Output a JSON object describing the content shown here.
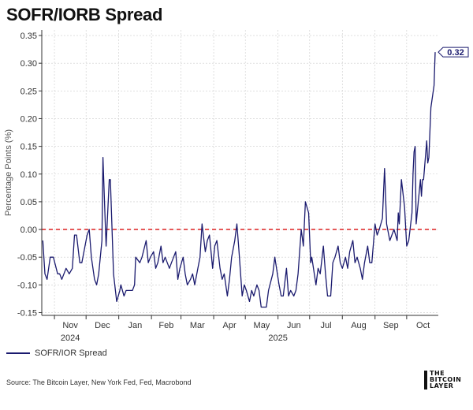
{
  "title": "SOFR/IORB Spread",
  "legend": {
    "label": "SOFR/IOR Spread"
  },
  "source": "Source: The Bitcoin Layer, New York Fed, Fed, Macrobond",
  "logo": {
    "line1": "THE",
    "line2": "BITCOIN",
    "line3": "LAYER"
  },
  "colors": {
    "series": "#1a1a6e",
    "zero_line": "#dd2222",
    "grid": "#cccccc"
  },
  "chart_data": {
    "type": "line",
    "title": "SOFR/IORB Spread",
    "ylabel": "Percentage Points (%)",
    "xlabel": "",
    "ylim": [
      -0.155,
      0.36
    ],
    "yticks": [
      0.35,
      0.3,
      0.25,
      0.2,
      0.15,
      0.1,
      0.05,
      0.0,
      -0.05,
      -0.1,
      -0.15
    ],
    "ytick_labels": [
      "0.35",
      "0.30",
      "0.25",
      "0.20",
      "0.15",
      "0.10",
      "0.05",
      "0.00",
      "-0.05",
      "-0.10",
      "-0.15"
    ],
    "xlim": [
      "2024-10-20",
      "2025-10-31"
    ],
    "month_starts": [
      "2024-11-01",
      "2024-12-01",
      "2025-01-01",
      "2025-02-01",
      "2025-03-01",
      "2025-04-01",
      "2025-05-01",
      "2025-06-01",
      "2025-07-01",
      "2025-08-01",
      "2025-09-01",
      "2025-10-01"
    ],
    "month_labels": [
      "Nov",
      "Dec",
      "Jan",
      "Feb",
      "Mar",
      "Apr",
      "May",
      "Jun",
      "Jul",
      "Aug",
      "Sep",
      "Oct"
    ],
    "year_labels": [
      {
        "label": "2024",
        "date": "2024-11-16"
      },
      {
        "label": "2025",
        "date": "2025-06-01"
      }
    ],
    "reference_line": {
      "y": 0.0,
      "style": "dashed"
    },
    "last_value_label": "0.32",
    "grid": true,
    "series": [
      {
        "name": "SOFR/IOR Spread",
        "points": [
          [
            "2024-10-21",
            -0.02
          ],
          [
            "2024-10-23",
            -0.08
          ],
          [
            "2024-10-25",
            -0.09
          ],
          [
            "2024-10-28",
            -0.05
          ],
          [
            "2024-10-31",
            -0.05
          ],
          [
            "2024-11-04",
            -0.08
          ],
          [
            "2024-11-06",
            -0.08
          ],
          [
            "2024-11-08",
            -0.09
          ],
          [
            "2024-11-12",
            -0.07
          ],
          [
            "2024-11-15",
            -0.08
          ],
          [
            "2024-11-18",
            -0.07
          ],
          [
            "2024-11-20",
            -0.01
          ],
          [
            "2024-11-22",
            -0.01
          ],
          [
            "2024-11-25",
            -0.06
          ],
          [
            "2024-11-27",
            -0.06
          ],
          [
            "2024-12-02",
            -0.01
          ],
          [
            "2024-12-04",
            0.0
          ],
          [
            "2024-12-06",
            -0.05
          ],
          [
            "2024-12-09",
            -0.09
          ],
          [
            "2024-12-11",
            -0.1
          ],
          [
            "2024-12-13",
            -0.08
          ],
          [
            "2024-12-16",
            -0.02
          ],
          [
            "2024-12-17",
            0.13
          ],
          [
            "2024-12-19",
            0.02
          ],
          [
            "2024-12-20",
            -0.03
          ],
          [
            "2024-12-23",
            0.09
          ],
          [
            "2024-12-24",
            0.09
          ],
          [
            "2024-12-26",
            -0.02
          ],
          [
            "2024-12-27",
            -0.08
          ],
          [
            "2024-12-30",
            -0.13
          ],
          [
            "2025-01-02",
            -0.11
          ],
          [
            "2025-01-03",
            -0.1
          ],
          [
            "2025-01-06",
            -0.12
          ],
          [
            "2025-01-08",
            -0.11
          ],
          [
            "2025-01-10",
            -0.11
          ],
          [
            "2025-01-14",
            -0.11
          ],
          [
            "2025-01-16",
            -0.1
          ],
          [
            "2025-01-17",
            -0.05
          ],
          [
            "2025-01-21",
            -0.06
          ],
          [
            "2025-01-23",
            -0.05
          ],
          [
            "2025-01-27",
            -0.02
          ],
          [
            "2025-01-29",
            -0.06
          ],
          [
            "2025-01-31",
            -0.05
          ],
          [
            "2025-02-03",
            -0.04
          ],
          [
            "2025-02-05",
            -0.07
          ],
          [
            "2025-02-07",
            -0.06
          ],
          [
            "2025-02-10",
            -0.03
          ],
          [
            "2025-02-12",
            -0.06
          ],
          [
            "2025-02-14",
            -0.05
          ],
          [
            "2025-02-18",
            -0.07
          ],
          [
            "2025-02-20",
            -0.06
          ],
          [
            "2025-02-24",
            -0.04
          ],
          [
            "2025-02-26",
            -0.09
          ],
          [
            "2025-02-28",
            -0.07
          ],
          [
            "2025-03-03",
            -0.05
          ],
          [
            "2025-03-05",
            -0.08
          ],
          [
            "2025-03-07",
            -0.1
          ],
          [
            "2025-03-10",
            -0.09
          ],
          [
            "2025-03-12",
            -0.08
          ],
          [
            "2025-03-14",
            -0.1
          ],
          [
            "2025-03-17",
            -0.07
          ],
          [
            "2025-03-19",
            -0.05
          ],
          [
            "2025-03-21",
            0.01
          ],
          [
            "2025-03-24",
            -0.04
          ],
          [
            "2025-03-26",
            -0.02
          ],
          [
            "2025-03-28",
            -0.01
          ],
          [
            "2025-03-31",
            -0.07
          ],
          [
            "2025-04-02",
            -0.03
          ],
          [
            "2025-04-04",
            -0.02
          ],
          [
            "2025-04-07",
            -0.07
          ],
          [
            "2025-04-09",
            -0.09
          ],
          [
            "2025-04-11",
            -0.08
          ],
          [
            "2025-04-14",
            -0.12
          ],
          [
            "2025-04-16",
            -0.09
          ],
          [
            "2025-04-18",
            -0.05
          ],
          [
            "2025-04-21",
            -0.02
          ],
          [
            "2025-04-23",
            0.01
          ],
          [
            "2025-04-25",
            -0.04
          ],
          [
            "2025-04-28",
            -0.12
          ],
          [
            "2025-04-30",
            -0.1
          ],
          [
            "2025-05-02",
            -0.11
          ],
          [
            "2025-05-05",
            -0.13
          ],
          [
            "2025-05-07",
            -0.11
          ],
          [
            "2025-05-09",
            -0.12
          ],
          [
            "2025-05-12",
            -0.1
          ],
          [
            "2025-05-14",
            -0.11
          ],
          [
            "2025-05-16",
            -0.14
          ],
          [
            "2025-05-19",
            -0.14
          ],
          [
            "2025-05-21",
            -0.14
          ],
          [
            "2025-05-23",
            -0.11
          ],
          [
            "2025-05-27",
            -0.08
          ],
          [
            "2025-05-29",
            -0.05
          ],
          [
            "2025-06-02",
            -0.1
          ],
          [
            "2025-06-04",
            -0.12
          ],
          [
            "2025-06-06",
            -0.12
          ],
          [
            "2025-06-09",
            -0.07
          ],
          [
            "2025-06-11",
            -0.12
          ],
          [
            "2025-06-13",
            -0.11
          ],
          [
            "2025-06-16",
            -0.12
          ],
          [
            "2025-06-18",
            -0.11
          ],
          [
            "2025-06-20",
            -0.08
          ],
          [
            "2025-06-23",
            0.0
          ],
          [
            "2025-06-25",
            -0.03
          ],
          [
            "2025-06-27",
            0.05
          ],
          [
            "2025-06-30",
            0.03
          ],
          [
            "2025-07-02",
            -0.06
          ],
          [
            "2025-07-03",
            -0.05
          ],
          [
            "2025-07-07",
            -0.1
          ],
          [
            "2025-07-09",
            -0.07
          ],
          [
            "2025-07-11",
            -0.08
          ],
          [
            "2025-07-14",
            -0.03
          ],
          [
            "2025-07-16",
            -0.08
          ],
          [
            "2025-07-18",
            -0.12
          ],
          [
            "2025-07-21",
            -0.12
          ],
          [
            "2025-07-23",
            -0.06
          ],
          [
            "2025-07-25",
            -0.05
          ],
          [
            "2025-07-28",
            -0.03
          ],
          [
            "2025-07-30",
            -0.06
          ],
          [
            "2025-08-01",
            -0.07
          ],
          [
            "2025-08-04",
            -0.05
          ],
          [
            "2025-08-06",
            -0.07
          ],
          [
            "2025-08-08",
            -0.04
          ],
          [
            "2025-08-11",
            -0.02
          ],
          [
            "2025-08-13",
            -0.06
          ],
          [
            "2025-08-15",
            -0.05
          ],
          [
            "2025-08-18",
            -0.07
          ],
          [
            "2025-08-20",
            -0.09
          ],
          [
            "2025-08-22",
            -0.06
          ],
          [
            "2025-08-25",
            -0.03
          ],
          [
            "2025-08-27",
            -0.06
          ],
          [
            "2025-08-29",
            -0.06
          ],
          [
            "2025-09-01",
            0.01
          ],
          [
            "2025-09-03",
            -0.01
          ],
          [
            "2025-09-05",
            0.0
          ],
          [
            "2025-09-08",
            0.02
          ],
          [
            "2025-09-10",
            0.11
          ],
          [
            "2025-09-12",
            0.01
          ],
          [
            "2025-09-15",
            -0.02
          ],
          [
            "2025-09-17",
            -0.01
          ],
          [
            "2025-09-19",
            0.0
          ],
          [
            "2025-09-22",
            -0.02
          ],
          [
            "2025-09-23",
            0.03
          ],
          [
            "2025-09-24",
            0.01
          ],
          [
            "2025-09-26",
            0.09
          ],
          [
            "2025-09-29",
            0.04
          ],
          [
            "2025-10-01",
            -0.03
          ],
          [
            "2025-10-03",
            -0.02
          ],
          [
            "2025-10-06",
            0.03
          ],
          [
            "2025-10-07",
            0.1
          ],
          [
            "2025-10-08",
            0.14
          ],
          [
            "2025-10-09",
            0.15
          ],
          [
            "2025-10-10",
            0.01
          ],
          [
            "2025-10-14",
            0.09
          ],
          [
            "2025-10-15",
            0.06
          ],
          [
            "2025-10-16",
            0.09
          ],
          [
            "2025-10-17",
            0.09
          ],
          [
            "2025-10-20",
            0.16
          ],
          [
            "2025-10-21",
            0.12
          ],
          [
            "2025-10-22",
            0.13
          ],
          [
            "2025-10-24",
            0.22
          ],
          [
            "2025-10-27",
            0.26
          ],
          [
            "2025-10-28",
            0.32
          ]
        ]
      }
    ]
  }
}
